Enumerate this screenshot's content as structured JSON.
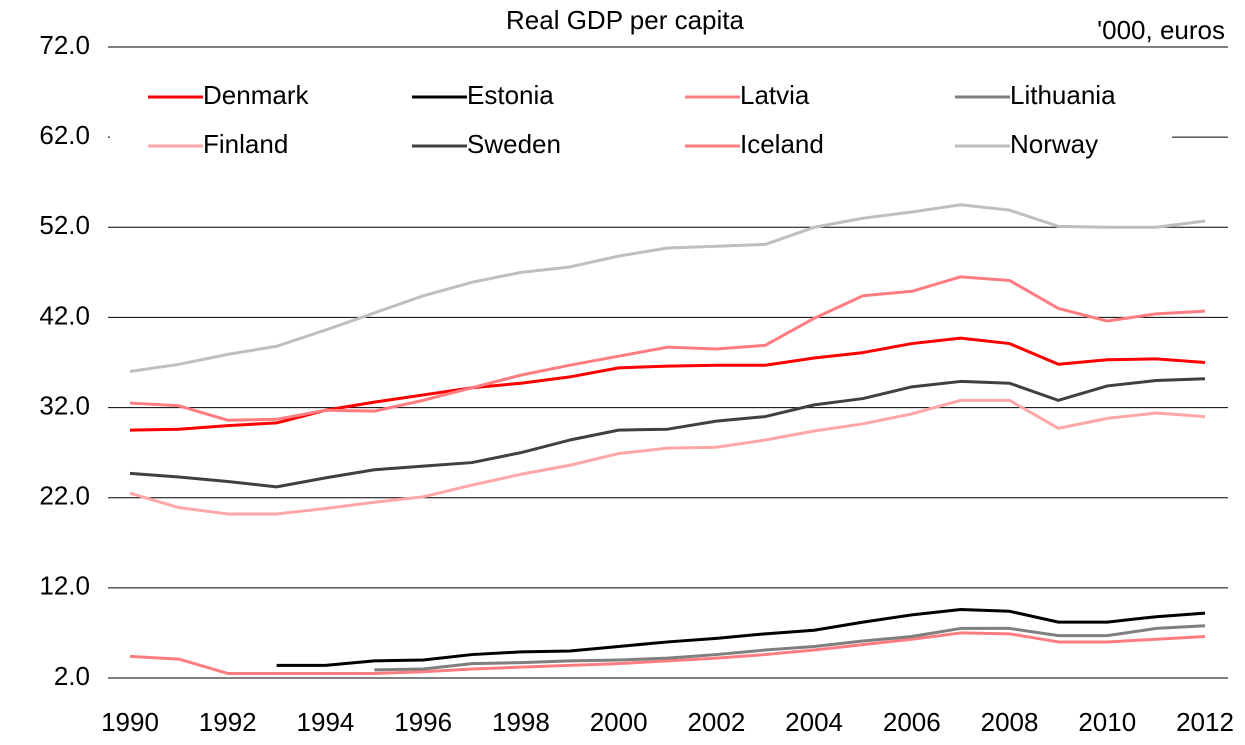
{
  "chart_data": {
    "type": "line",
    "title": "Real GDP per capita",
    "unit_label": "'000, euros",
    "x": [
      1990,
      1991,
      1992,
      1993,
      1994,
      1995,
      1996,
      1997,
      1998,
      1999,
      2000,
      2001,
      2002,
      2003,
      2004,
      2005,
      2006,
      2007,
      2008,
      2009,
      2010,
      2011,
      2012
    ],
    "xlim": [
      1990,
      2012
    ],
    "xticks": [
      1990,
      1992,
      1994,
      1996,
      1998,
      2000,
      2002,
      2004,
      2006,
      2008,
      2010,
      2012
    ],
    "ylim": [
      2,
      72
    ],
    "yticks": [
      {
        "value": 2,
        "label": "2.0"
      },
      {
        "value": 12,
        "label": "12.0"
      },
      {
        "value": 22,
        "label": "22.0"
      },
      {
        "value": 32,
        "label": "32.0"
      },
      {
        "value": 42,
        "label": "42.0"
      },
      {
        "value": 52,
        "label": "52.0"
      },
      {
        "value": 62,
        "label": "62.0"
      },
      {
        "value": 72,
        "label": "72.0"
      }
    ],
    "grid": true,
    "series": [
      {
        "name": "Denmark",
        "color": "#ff0000",
        "values": [
          29.5,
          29.6,
          30.0,
          30.3,
          31.7,
          32.6,
          33.4,
          34.2,
          34.7,
          35.4,
          36.4,
          36.6,
          36.7,
          36.7,
          37.5,
          38.1,
          39.1,
          39.7,
          39.1,
          36.8,
          37.3,
          37.4,
          37.0
        ]
      },
      {
        "name": "Estonia",
        "color": "#000000",
        "values": [
          null,
          null,
          null,
          3.4,
          3.4,
          3.9,
          4.0,
          4.6,
          4.9,
          5.0,
          5.5,
          6.0,
          6.4,
          6.9,
          7.3,
          8.2,
          9.0,
          9.6,
          9.4,
          8.2,
          8.2,
          8.8,
          9.2
        ]
      },
      {
        "name": "Latvia",
        "color": "#ff7c80",
        "values": [
          4.4,
          4.1,
          2.5,
          2.5,
          2.5,
          2.5,
          2.7,
          3.0,
          3.2,
          3.4,
          3.6,
          3.9,
          4.2,
          4.6,
          5.1,
          5.7,
          6.3,
          7.0,
          6.9,
          6.0,
          6.0,
          6.3,
          6.6
        ]
      },
      {
        "name": "Lithuania",
        "color": "#7f7f7f",
        "values": [
          null,
          null,
          null,
          null,
          null,
          2.9,
          3.0,
          3.6,
          3.7,
          3.9,
          4.0,
          4.2,
          4.6,
          5.1,
          5.5,
          6.1,
          6.6,
          7.5,
          7.5,
          6.7,
          6.7,
          7.5,
          7.8
        ]
      },
      {
        "name": "Finland",
        "color": "#ffa6a6",
        "values": [
          22.5,
          20.9,
          20.2,
          20.2,
          20.8,
          21.5,
          22.1,
          23.4,
          24.6,
          25.6,
          26.9,
          27.5,
          27.6,
          28.4,
          29.4,
          30.2,
          31.3,
          32.8,
          32.8,
          29.7,
          30.8,
          31.4,
          31.0
        ]
      },
      {
        "name": "Sweden",
        "color": "#404040",
        "values": [
          24.7,
          24.3,
          23.8,
          23.2,
          24.2,
          25.1,
          25.5,
          25.9,
          27.0,
          28.4,
          29.5,
          29.6,
          30.5,
          31.0,
          32.3,
          33.0,
          34.3,
          34.9,
          34.7,
          32.8,
          34.4,
          35.0,
          35.2
        ]
      },
      {
        "name": "Iceland",
        "color": "#ff7c80",
        "values": [
          32.5,
          32.2,
          30.6,
          30.7,
          31.7,
          31.6,
          32.8,
          34.2,
          35.6,
          36.7,
          37.7,
          38.7,
          38.5,
          38.9,
          41.9,
          44.4,
          44.9,
          46.5,
          46.1,
          43.0,
          41.6,
          42.4,
          42.7
        ]
      },
      {
        "name": "Norway",
        "color": "#bfbfbf",
        "values": [
          36.0,
          36.8,
          37.9,
          38.8,
          40.6,
          42.5,
          44.4,
          45.9,
          47.0,
          47.6,
          48.8,
          49.7,
          49.9,
          50.1,
          52.0,
          53.0,
          53.7,
          54.5,
          53.9,
          52.1,
          52.0,
          52.0,
          52.7
        ]
      }
    ]
  }
}
